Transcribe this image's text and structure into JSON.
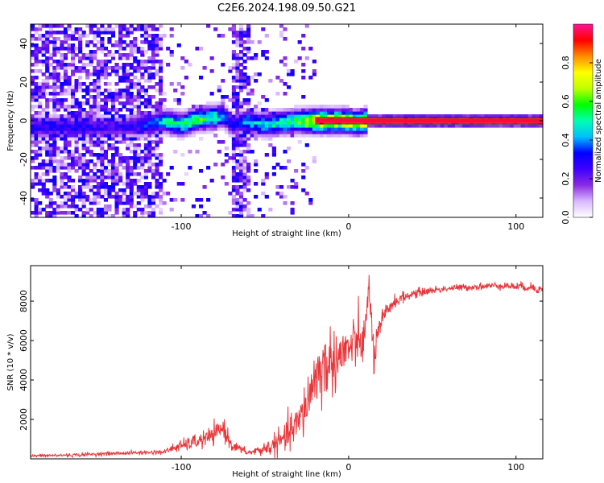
{
  "figure": {
    "title": "C2E6.2024.198.09.50.G21"
  },
  "chart_data": [
    {
      "type": "heatmap",
      "title": "C2E6.2024.198.09.50.G21",
      "xlabel": "Height of straight line (km)",
      "ylabel": "Frequency (Hz)",
      "xlim": [
        -190,
        116
      ],
      "ylim": [
        -50,
        50
      ],
      "x_ticks": [
        -100,
        0,
        100
      ],
      "y_ticks": [
        -40,
        -20,
        0,
        20,
        40
      ],
      "x_tick_labels": [
        "-100",
        "0",
        "100"
      ],
      "y_tick_labels": [
        "-40",
        "-20",
        "0",
        "20",
        "40"
      ],
      "grid": false,
      "colorbar": {
        "label": "Normalized spectral amplitude",
        "range": [
          0,
          1
        ],
        "ticks": [
          0.0,
          0.2,
          0.4,
          0.6,
          0.8
        ],
        "tick_labels": [
          "0.0",
          "0.2",
          "0.4",
          "0.6",
          "0.8"
        ],
        "colormap": [
          "#ffffff",
          "#d9b8ff",
          "#8a2be2",
          "#3f00ff",
          "#0000ff",
          "#00bfff",
          "#00ffb0",
          "#00ff00",
          "#bfff00",
          "#ffff00",
          "#ff8c00",
          "#ff0000",
          "#ff1493"
        ]
      },
      "ridge": {
        "x": [
          -155,
          -140,
          -120,
          -110,
          -100,
          -90,
          -80,
          -75,
          -70,
          -60,
          -50,
          -40,
          -30,
          -20,
          -10,
          0,
          5,
          10,
          20,
          50,
          116
        ],
        "frequency": [
          -3,
          -3,
          -2,
          0,
          -2,
          1,
          2,
          3,
          -2,
          0,
          -2,
          -1,
          0,
          0,
          0,
          0,
          -1,
          0,
          0,
          0,
          0
        ],
        "amplitude": [
          0.3,
          0.25,
          0.35,
          0.5,
          0.55,
          0.6,
          0.55,
          0.45,
          0.3,
          0.45,
          0.5,
          0.55,
          0.6,
          0.9,
          0.85,
          0.85,
          0.75,
          0.9,
          0.95,
          0.95,
          0.95
        ]
      },
      "noise_regions": [
        {
          "x_range": [
            -190,
            -112
          ],
          "density": 0.65
        },
        {
          "x_range": [
            -112,
            -70
          ],
          "density": 0.08
        },
        {
          "x_range": [
            -70,
            -58
          ],
          "density": 0.7
        },
        {
          "x_range": [
            -58,
            -20
          ],
          "density": 0.12
        }
      ]
    },
    {
      "type": "line",
      "xlabel": "Height of straight line (km)",
      "ylabel": "SNR (10 * v/v)",
      "xlim": [
        -190,
        116
      ],
      "ylim": [
        0,
        9800
      ],
      "x_ticks": [
        -100,
        0,
        100
      ],
      "y_ticks": [
        2000,
        4000,
        6000,
        8000
      ],
      "x_tick_labels": [
        "-100",
        "0",
        "100"
      ],
      "y_tick_labels": [
        "2000",
        "4000",
        "6000",
        "8000"
      ],
      "grid": false,
      "color": "#e8363b",
      "x": [
        -190,
        -160,
        -150,
        -130,
        -110,
        -105,
        -100,
        -90,
        -80,
        -75,
        -70,
        -60,
        -50,
        -40,
        -30,
        -25,
        -20,
        -15,
        -10,
        -5,
        0,
        5,
        10,
        12,
        15,
        20,
        25,
        30,
        40,
        50,
        60,
        70,
        80,
        90,
        100,
        110,
        116
      ],
      "y": [
        150,
        200,
        250,
        300,
        350,
        550,
        650,
        900,
        1200,
        1600,
        700,
        300,
        500,
        900,
        1800,
        2800,
        4200,
        4600,
        5000,
        5200,
        5600,
        5900,
        6100,
        9000,
        5200,
        7000,
        7800,
        8100,
        8400,
        8550,
        8650,
        8700,
        8750,
        8800,
        8750,
        8700,
        8550
      ],
      "noise_amplitude": [
        60,
        80,
        80,
        80,
        100,
        200,
        250,
        350,
        400,
        500,
        250,
        120,
        300,
        600,
        900,
        1200,
        1500,
        1500,
        1400,
        1300,
        1200,
        1100,
        1000,
        700,
        900,
        500,
        350,
        250,
        200,
        170,
        150,
        150,
        150,
        150,
        170,
        200,
        200
      ]
    }
  ]
}
